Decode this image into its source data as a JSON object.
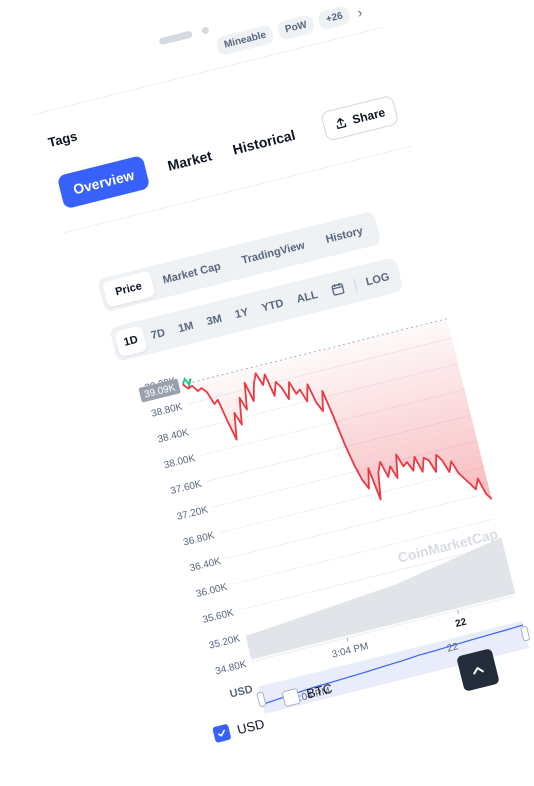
{
  "tags_bar": {
    "chips": [
      "Mineable",
      "PoW",
      "+26"
    ],
    "more_icon": "chevron-right-icon"
  },
  "tags_label": "Tags",
  "nav": {
    "tabs": [
      {
        "label": "Overview",
        "active": true
      },
      {
        "label": "Market",
        "active": false
      },
      {
        "label": "Historical",
        "active": false
      }
    ],
    "share_label": "Share",
    "share_icon": "share-icon"
  },
  "chart_type_tabs": [
    {
      "label": "Price",
      "active": true
    },
    {
      "label": "Market Cap",
      "active": false
    },
    {
      "label": "TradingView",
      "active": false
    },
    {
      "label": "History",
      "active": false
    }
  ],
  "range_tabs": [
    {
      "label": "1D",
      "active": true
    },
    {
      "label": "7D",
      "active": false
    },
    {
      "label": "1M",
      "active": false
    },
    {
      "label": "3M",
      "active": false
    },
    {
      "label": "1Y",
      "active": false
    },
    {
      "label": "YTD",
      "active": false
    },
    {
      "label": "ALL",
      "active": false
    }
  ],
  "calendar_icon": "calendar-icon",
  "log_label": "LOG",
  "chart_data": {
    "type": "line",
    "currency_label": "USD",
    "current_price_label": "39.09K",
    "top_tick_partial": "39.20K",
    "y_ticks": [
      "38.80K",
      "38.40K",
      "38.00K",
      "37.60K",
      "37.20K",
      "36.80K",
      "36.40K",
      "36.00K",
      "35.60K",
      "35.20K",
      "34.80K"
    ],
    "ylim": [
      34800,
      39200
    ],
    "x_tick_labels": [
      "3:04 PM",
      "22"
    ],
    "series": [
      {
        "values": [
          39100,
          39020,
          39050,
          38950,
          38980,
          38900,
          38700,
          38750,
          38400,
          38100,
          38500,
          38300,
          38700,
          38500,
          38900,
          38600,
          38850,
          39000,
          38800,
          38950,
          38600,
          38800,
          38700,
          38500,
          38750,
          38550,
          38600,
          38400,
          38650,
          38350,
          38200,
          38500,
          38100,
          37650,
          37300,
          37050,
          36900,
          37200,
          36700,
          37100,
          37250,
          37000,
          37150,
          36950,
          37300,
          37100,
          37150,
          37000,
          37200,
          36950,
          37150,
          37100,
          36900,
          37150,
          37050,
          36850,
          37000,
          36800,
          36700,
          36600,
          36500,
          36650,
          36400,
          36300
        ],
        "color": "#ea3943"
      }
    ],
    "open_segment_color": "#16c784",
    "volume_color": "#d9dde4",
    "navigator": {
      "x_label": "3:04 PM",
      "x_label_2": "22",
      "values": [
        0.35,
        0.4,
        0.45,
        0.5,
        0.52,
        0.55,
        0.58,
        0.62,
        0.65,
        0.7,
        0.72,
        0.75,
        0.78,
        0.8,
        0.82,
        0.85
      ],
      "color": "#3861fb"
    },
    "watermark": "CoinMarketCap"
  },
  "currency_options": [
    {
      "label": "USD",
      "checked": true
    },
    {
      "label": "BTC",
      "checked": false
    }
  ],
  "scroll_top_icon": "chevron-up-icon"
}
